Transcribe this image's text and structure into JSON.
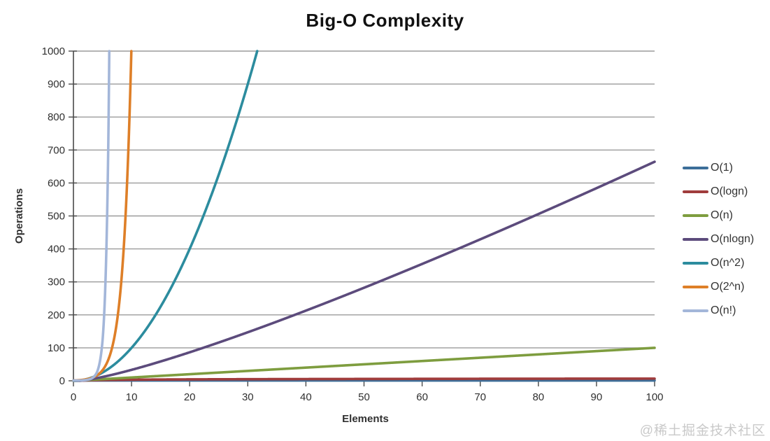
{
  "watermark": "@稀土掘金技术社区",
  "chart_data": {
    "type": "line",
    "title": "Big-O Complexity",
    "xlabel": "Elements",
    "ylabel": "Operations",
    "xlim": [
      0,
      100
    ],
    "ylim": [
      0,
      1000
    ],
    "x_ticks": [
      0,
      10,
      20,
      30,
      40,
      50,
      60,
      70,
      80,
      90,
      100
    ],
    "y_ticks": [
      0,
      100,
      200,
      300,
      400,
      500,
      600,
      700,
      800,
      900,
      1000
    ],
    "grid": "horizontal-only",
    "legend_position": "right-outside",
    "axis_color": "#4a4a4a",
    "gridline_color": "#9b9b9b",
    "tick_label_color": "#303030",
    "series": [
      {
        "name": "O(1)",
        "formula": "1",
        "color": "#3c6e99",
        "points": [
          [
            0,
            1
          ],
          [
            50,
            1
          ],
          [
            100,
            1
          ]
        ]
      },
      {
        "name": "O(logn)",
        "formula": "log2(n)",
        "color": "#a03c3c",
        "points": [
          [
            1,
            0
          ],
          [
            10,
            3.3
          ],
          [
            50,
            5.6
          ],
          [
            100,
            6.6
          ]
        ]
      },
      {
        "name": "O(n)",
        "formula": "n",
        "color": "#7e9d3f",
        "points": [
          [
            0,
            0
          ],
          [
            50,
            50
          ],
          [
            100,
            100
          ]
        ]
      },
      {
        "name": "O(nlogn)",
        "formula": "n*log2(n)",
        "color": "#5c4b7c",
        "points": [
          [
            1,
            0
          ],
          [
            10,
            33
          ],
          [
            50,
            282
          ],
          [
            100,
            664
          ]
        ]
      },
      {
        "name": "O(n^2)",
        "formula": "n^2",
        "color": "#2c8c9e",
        "points": [
          [
            0,
            0
          ],
          [
            10,
            100
          ],
          [
            20,
            400
          ],
          [
            31.6,
            1000
          ]
        ]
      },
      {
        "name": "O(2^n)",
        "formula": "2^n",
        "color": "#de7f28",
        "points": [
          [
            0,
            1
          ],
          [
            5,
            32
          ],
          [
            9,
            512
          ],
          [
            10,
            1000
          ]
        ]
      },
      {
        "name": "O(n!)",
        "formula": "n!",
        "color": "#a3b6d9",
        "points": [
          [
            1,
            1
          ],
          [
            5,
            120
          ],
          [
            6,
            720
          ],
          [
            6.2,
            1000
          ]
        ]
      }
    ]
  }
}
